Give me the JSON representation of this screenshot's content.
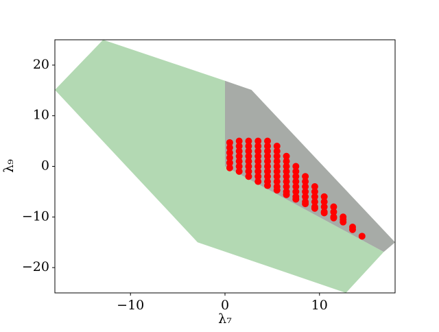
{
  "chart_data": {
    "type": "scatter",
    "xlabel": "λ₇",
    "ylabel": "λ₉",
    "xlim": [
      -18,
      18
    ],
    "ylim": [
      -25,
      25
    ],
    "xticks": [
      {
        "value": -10,
        "label": "−10"
      },
      0,
      10
    ],
    "yticks": [
      {
        "value": -20,
        "label": "−20"
      },
      {
        "value": -10,
        "label": "−10"
      },
      0,
      10,
      20
    ],
    "regions": [
      {
        "color": "#b3d9b3",
        "x": [
          -18,
          -12.9,
          0,
          0,
          16.8,
          12.8,
          -2.9
        ],
        "y": [
          15.1,
          25,
          16.9,
          0,
          -16.9,
          -25,
          -15
        ]
      },
      {
        "color": "#a7aba7",
        "x": [
          0,
          2.8,
          18,
          16.8,
          0
        ],
        "y": [
          16.9,
          15.1,
          -15,
          -16.9,
          0
        ]
      }
    ],
    "series": [
      {
        "color": "#ff0000",
        "x": [
          0.5,
          0.5,
          0.5,
          0.5,
          0.5,
          0.5,
          1.5,
          1.5,
          1.5,
          1.5,
          1.5,
          1.5,
          1.5,
          2.5,
          2.5,
          2.5,
          2.5,
          2.5,
          2.5,
          2.5,
          2.5,
          3.5,
          3.5,
          3.5,
          3.5,
          3.5,
          3.5,
          3.5,
          3.5,
          3.5,
          4.5,
          4.5,
          4.5,
          4.5,
          4.5,
          4.5,
          4.5,
          4.5,
          4.5,
          4.5,
          5.5,
          5.5,
          5.5,
          5.5,
          5.5,
          5.5,
          5.5,
          5.5,
          5.5,
          5.5,
          6.5,
          6.5,
          6.5,
          6.5,
          6.5,
          6.5,
          6.5,
          6.5,
          6.5,
          7.5,
          7.5,
          7.5,
          7.5,
          7.5,
          7.5,
          7.5,
          7.5,
          8.5,
          8.5,
          8.5,
          8.5,
          8.5,
          8.5,
          8.5,
          9.5,
          9.5,
          9.5,
          9.5,
          9.5,
          9.5,
          10.5,
          10.5,
          10.5,
          10.5,
          10.5,
          11.5,
          11.5,
          11.5,
          11.5,
          12.5,
          12.5,
          12.5,
          13.5,
          13.5,
          14.5
        ],
        "y": [
          -0.3,
          0.7,
          1.7,
          2.7,
          3.7,
          4.7,
          -1,
          0,
          1,
          2,
          3,
          4,
          5,
          -2,
          -1,
          0,
          1,
          2,
          3,
          4,
          5,
          -3,
          -2,
          -1,
          0,
          1,
          2,
          3,
          4,
          5,
          -3.8,
          -3,
          -2,
          -1,
          0,
          1,
          2,
          3,
          4,
          5,
          -4.7,
          -4,
          -3,
          -2,
          -1,
          0,
          1,
          2,
          3,
          4,
          -5.6,
          -5,
          -4,
          -3,
          -2,
          -1,
          0,
          1,
          2,
          -6.5,
          -6,
          -5,
          -4,
          -3,
          -2,
          -1,
          0,
          -7.4,
          -7,
          -6,
          -5,
          -4,
          -3,
          -2,
          -8.3,
          -8,
          -7,
          -6,
          -5,
          -4,
          -9.2,
          -9,
          -8,
          -7,
          -6,
          -10.2,
          -10,
          -9,
          -8,
          -11,
          -10.5,
          -10,
          -12,
          -12.5,
          -13.8
        ]
      }
    ]
  }
}
